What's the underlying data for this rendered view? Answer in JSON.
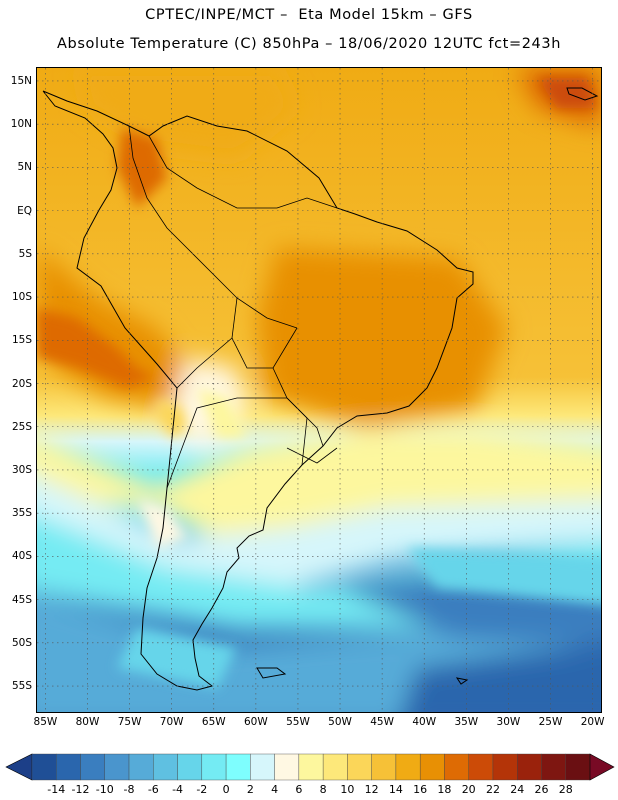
{
  "header": {
    "line1": "CPTEC/INPE/MCT –  Eta Model 15km – GFS",
    "line2": "Absolute Temperature (C) 850hPa – 18/06/2020 12UTC fct=243h"
  },
  "map": {
    "variable": "Absolute Temperature (C) 850hPa",
    "lon_range": [
      -86,
      -19
    ],
    "lat_range": [
      16.5,
      -58
    ],
    "lat_ticks": [
      "15N",
      "10N",
      "5N",
      "EQ",
      "5S",
      "10S",
      "15S",
      "20S",
      "25S",
      "30S",
      "35S",
      "40S",
      "45S",
      "50S",
      "55S"
    ],
    "lon_ticks": [
      "85W",
      "80W",
      "75W",
      "70W",
      "65W",
      "60W",
      "55W",
      "50W",
      "45W",
      "40W",
      "35W",
      "30W",
      "25W",
      "20W"
    ],
    "gridlines": "dotted"
  },
  "colorbar": {
    "labels": [
      "-14",
      "-12",
      "-10",
      "-8",
      "-6",
      "-4",
      "-2",
      "0",
      "2",
      "4",
      "6",
      "8",
      "10",
      "12",
      "14",
      "16",
      "18",
      "20",
      "22",
      "24",
      "26",
      "28"
    ],
    "colors": [
      "#1f4f96",
      "#2a66ad",
      "#3a7ebf",
      "#4a95cd",
      "#56abd8",
      "#5fc0e1",
      "#66d5ea",
      "#74ebf3",
      "#7efefe",
      "#d6f6fb",
      "#fff8e3",
      "#fdf79e",
      "#fde87a",
      "#fbd659",
      "#f6c137",
      "#f0ab14",
      "#e89004",
      "#de6b04",
      "#cc4b07",
      "#b43408",
      "#9a220c",
      "#7e1611",
      "#6a0f12"
    ],
    "under_color": "#1c3f88",
    "over_color": "#780a25"
  }
}
